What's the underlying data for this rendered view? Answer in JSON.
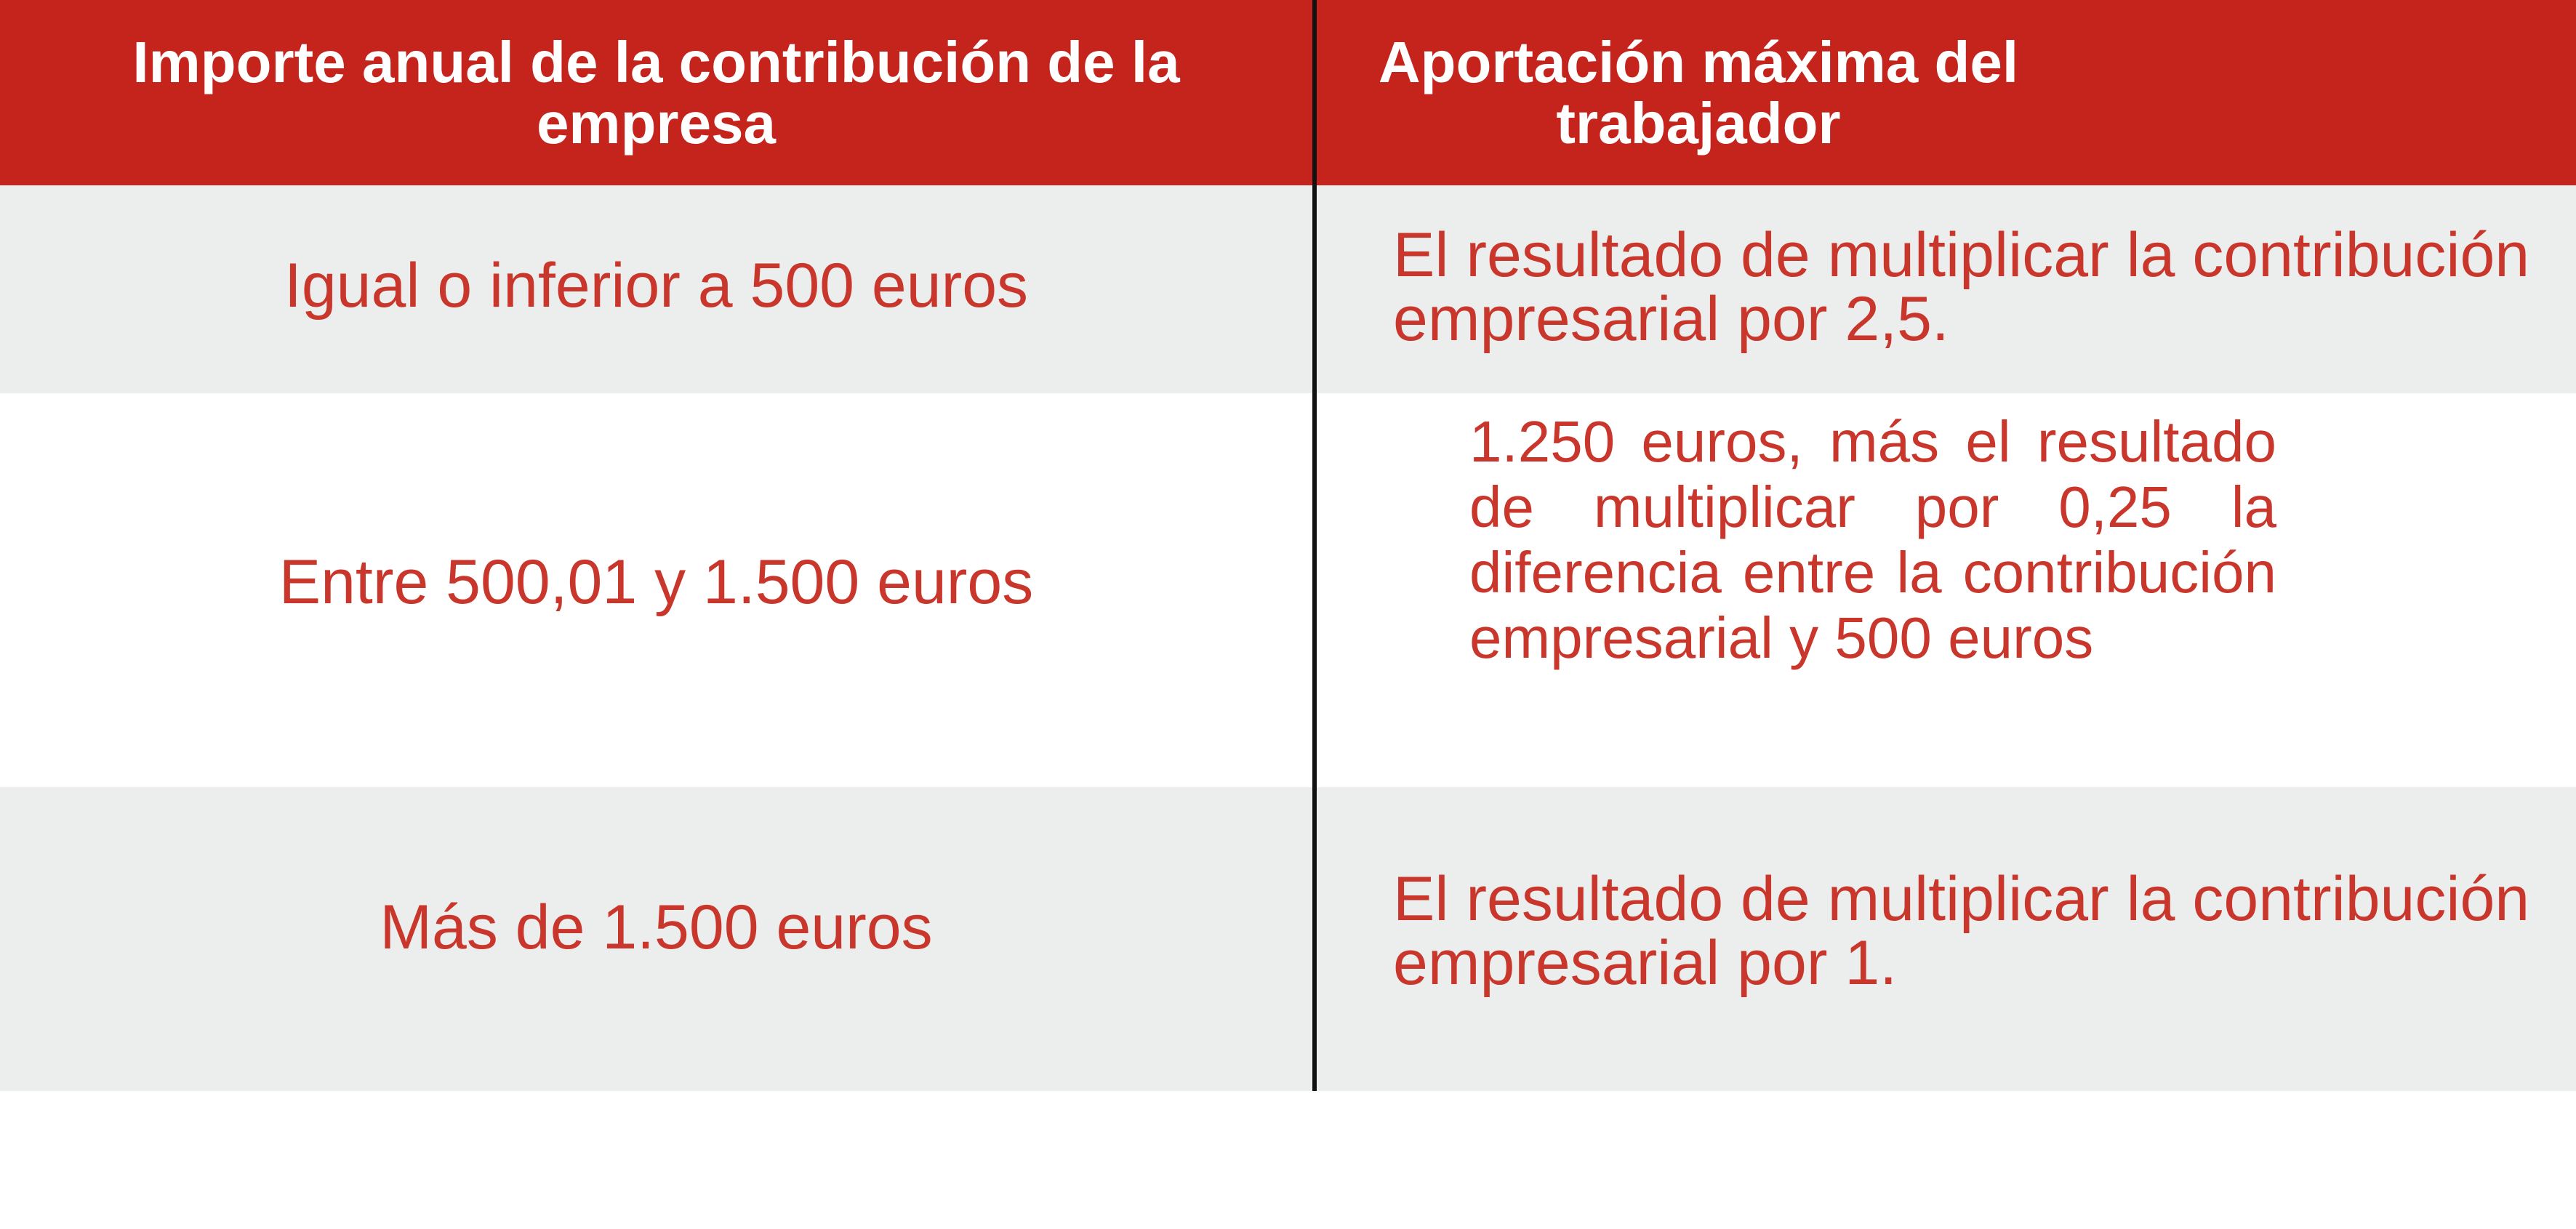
{
  "table": {
    "headers": [
      "Importe anual de la contribución de la empresa",
      "Aportación máxima del trabajador"
    ],
    "rows": [
      {
        "contribution": "Igual o inferior a 500 euros",
        "max_contribution": "El resultado de multiplicar la contribución empresarial por 2,5."
      },
      {
        "contribution": "Entre 500,01 y 1.500 euros",
        "max_contribution": "1.250 euros, más el resultado de multiplicar por 0,25 la diferencia entre la contribución empresarial y 500 euros"
      },
      {
        "contribution": "Más de 1.500 euros",
        "max_contribution": "El resultado de multiplicar la contribución empresarial por 1."
      }
    ],
    "colors": {
      "header_bg": "#c5241d",
      "header_text": "#ffffff",
      "body_text": "#c9372c",
      "row_alt_bg": "#eceded",
      "divider": "#111111"
    }
  }
}
